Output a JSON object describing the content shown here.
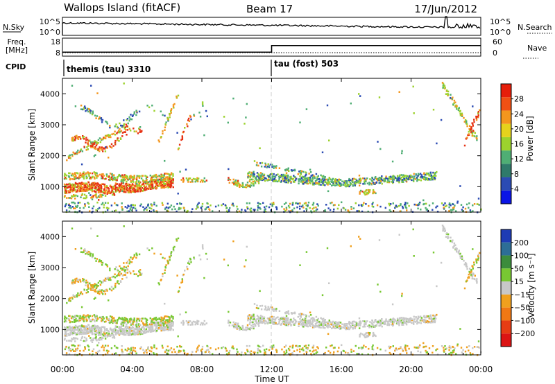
{
  "header": {
    "station": "Wallops Island (fitACF)",
    "beam": "Beam 17",
    "date": "17/Jun/2012"
  },
  "top_panels": {
    "nsky_label": "N.Sky",
    "nsky_ticks": [
      "10^5",
      "10^0"
    ],
    "nsearch_label": "N.Search",
    "nsearch_ticks": [
      "10^5",
      "10^0"
    ],
    "freq_label_line1": "Freq.",
    "freq_label_line2": "[MHz]",
    "freq_ticks": [
      "18",
      "8"
    ],
    "nave_label": "Nave",
    "nave_ticks": [
      "60",
      "0"
    ],
    "cpid_label": "CPID",
    "cpid_segments": [
      {
        "name": "themis (tau) 3310",
        "start_hour": 0,
        "end_hour": 12
      },
      {
        "name": "tau (fost) 503",
        "start_hour": 12,
        "end_hour": 24
      }
    ],
    "freq_steps": [
      {
        "start_hour": 0,
        "end_hour": 12,
        "mhz": 10.5
      },
      {
        "start_hour": 12,
        "end_hour": 24,
        "mhz": 15.5
      }
    ]
  },
  "chart_data": [
    {
      "type": "heatmap",
      "panel": "power",
      "ylabel": "Slant Range [km]",
      "yticks": [
        "1000",
        "2000",
        "3000",
        "4000"
      ],
      "ytick_values": [
        1000,
        2000,
        3000,
        4000
      ],
      "ylim": [
        180,
        4500
      ],
      "xlim": [
        0,
        24
      ],
      "colorbar_label": "Power [dB]",
      "colorbar_ticks": [
        "4",
        "8",
        "12",
        "16",
        "20",
        "24",
        "28"
      ],
      "colorbar_tick_values": [
        4,
        8,
        12,
        16,
        20,
        24,
        28
      ],
      "colorbar_range": [
        0,
        32
      ],
      "colorbar_colors": [
        "#0a14e6",
        "#2b4bb3",
        "#2f7a6a",
        "#4fae74",
        "#9cd22d",
        "#e6d21c",
        "#f4961e",
        "#f05014",
        "#e61e0a"
      ],
      "colors": {
        "low": "#2b4bb3",
        "mid_low": "#4fae74",
        "mid": "#9cd22d",
        "mid_high": "#f4961e",
        "high": "#e63214"
      }
    },
    {
      "type": "heatmap",
      "panel": "velocity",
      "ylabel": "Slant Range [km]",
      "yticks": [
        "1000",
        "2000",
        "3000",
        "4000"
      ],
      "ytick_values": [
        1000,
        2000,
        3000,
        4000
      ],
      "ylim": [
        180,
        4500
      ],
      "xlim": [
        0,
        24
      ],
      "xlabel": "Time UT",
      "xticks": [
        "00:00",
        "04:00",
        "08:00",
        "12:00",
        "16:00",
        "20:00",
        "00:00"
      ],
      "xtick_values": [
        0,
        4,
        8,
        12,
        16,
        20,
        24
      ],
      "colorbar_label": "Velocity [m s⁻¹]",
      "colorbar_ticks": [
        "200",
        "100",
        "50",
        "15",
        "−15",
        "−50",
        "−100",
        "−200"
      ],
      "colorbar_colors": [
        "#1e3cb4",
        "#2d6e96",
        "#3c8c3c",
        "#78c832",
        "#c8c8c8",
        "#f0a01e",
        "#f07814",
        "#e63c14",
        "#dc1414"
      ],
      "colors": {
        "ground": "#c8c8c8",
        "positive": "#78c832",
        "negative": "#f0a01e"
      }
    }
  ]
}
